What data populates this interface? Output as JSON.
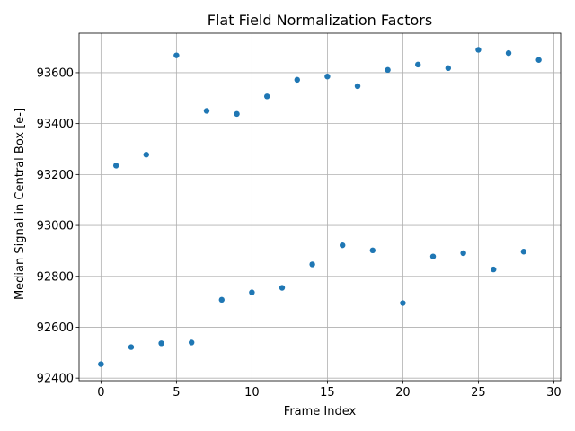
{
  "chart_data": {
    "type": "scatter",
    "title": "Flat Field Normalization Factors",
    "xlabel": "Frame Index",
    "ylabel": "Median Signal in Central Box [e-]",
    "xlim": [
      -1.45,
      30.45
    ],
    "ylim": [
      92390,
      93755
    ],
    "xticks": [
      0,
      5,
      10,
      15,
      20,
      25,
      30
    ],
    "yticks": [
      92400,
      92600,
      92800,
      93000,
      93200,
      93400,
      93600
    ],
    "grid": true,
    "marker_color": "#1f77b4",
    "x": [
      0,
      1,
      2,
      3,
      4,
      5,
      6,
      7,
      8,
      9,
      10,
      11,
      12,
      13,
      14,
      15,
      16,
      17,
      18,
      19,
      20,
      21,
      22,
      23,
      24,
      25,
      26,
      27,
      28,
      29
    ],
    "y": [
      92455,
      93235,
      92522,
      93278,
      92537,
      93668,
      92540,
      93450,
      92708,
      93438,
      92737,
      93507,
      92755,
      93572,
      92847,
      93585,
      92922,
      93547,
      92902,
      93611,
      92695,
      93632,
      92878,
      93618,
      92891,
      93690,
      92827,
      93677,
      92897,
      93650
    ]
  }
}
